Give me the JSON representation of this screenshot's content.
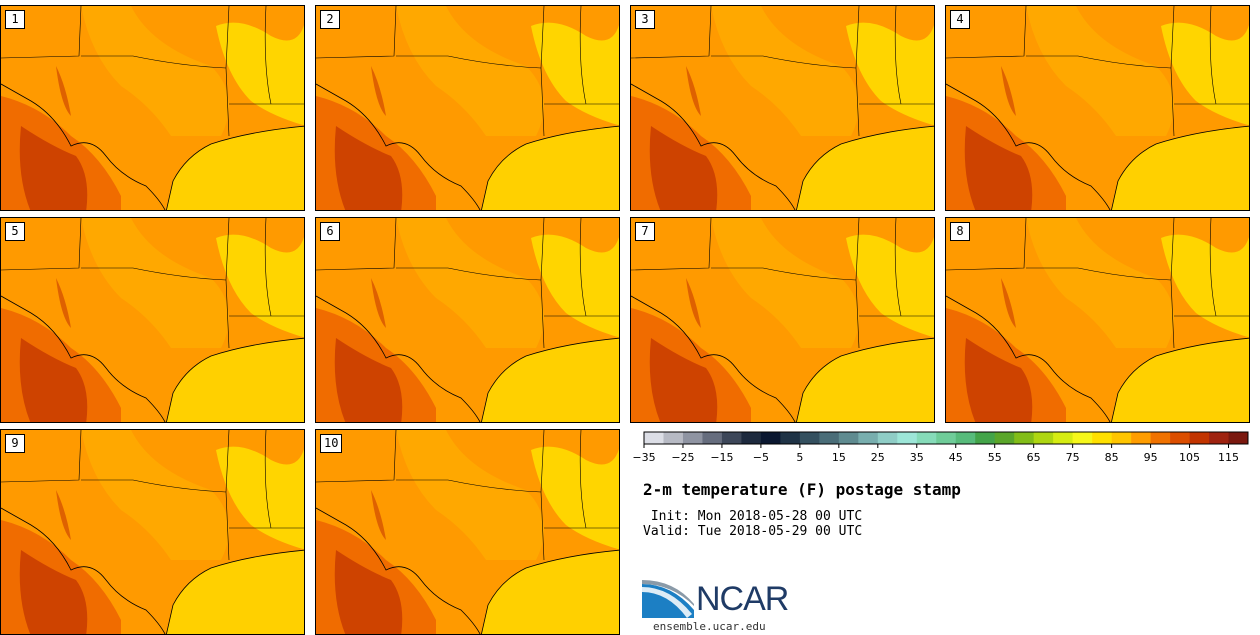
{
  "title": "2-m temperature (F) postage stamp",
  "init_line": " Init: Mon 2018-05-28 00 UTC",
  "valid_line": "Valid: Tue 2018-05-29 00 UTC",
  "logo_text": "NCAR",
  "logo_url": "ensemble.ucar.edu",
  "colors": {
    "gulf": "#ffd000",
    "land_warm": "#ff9a00",
    "land_mid": "#ffb400",
    "land_hot": "#f06c00",
    "land_veryhot": "#c83c00",
    "land_cool": "#ffe400",
    "border": "#000000"
  },
  "panels": [
    {
      "label": "1"
    },
    {
      "label": "2"
    },
    {
      "label": "3"
    },
    {
      "label": "4"
    },
    {
      "label": "5"
    },
    {
      "label": "6"
    },
    {
      "label": "7"
    },
    {
      "label": "8"
    },
    {
      "label": "9"
    },
    {
      "label": "10"
    }
  ],
  "colorbar": {
    "min": -35,
    "max": 120,
    "step": 5,
    "tick_labels": [
      "−35",
      "−25",
      "−15",
      "−5",
      "5",
      "15",
      "25",
      "35",
      "45",
      "55",
      "65",
      "75",
      "85",
      "95",
      "105",
      "115"
    ],
    "tick_values": [
      -35,
      -25,
      -15,
      -5,
      5,
      15,
      25,
      35,
      45,
      55,
      65,
      75,
      85,
      95,
      105,
      115
    ],
    "colors": [
      "#dcdee6",
      "#b7bac4",
      "#8f94a2",
      "#666d7e",
      "#3d4759",
      "#1d2a3e",
      "#0a1730",
      "#1f3346",
      "#34505f",
      "#4a6d78",
      "#5f8b90",
      "#78aeae",
      "#8fcdc6",
      "#9de6d8",
      "#86dbb9",
      "#6fcc99",
      "#57bb7b",
      "#43a449",
      "#5aa62a",
      "#82bd18",
      "#aed611",
      "#d6ec12",
      "#f6f71b",
      "#ffe000",
      "#ffc500",
      "#ff9d00",
      "#f07200",
      "#dc4e00",
      "#c23400",
      "#9f2310",
      "#7a180f"
    ]
  }
}
